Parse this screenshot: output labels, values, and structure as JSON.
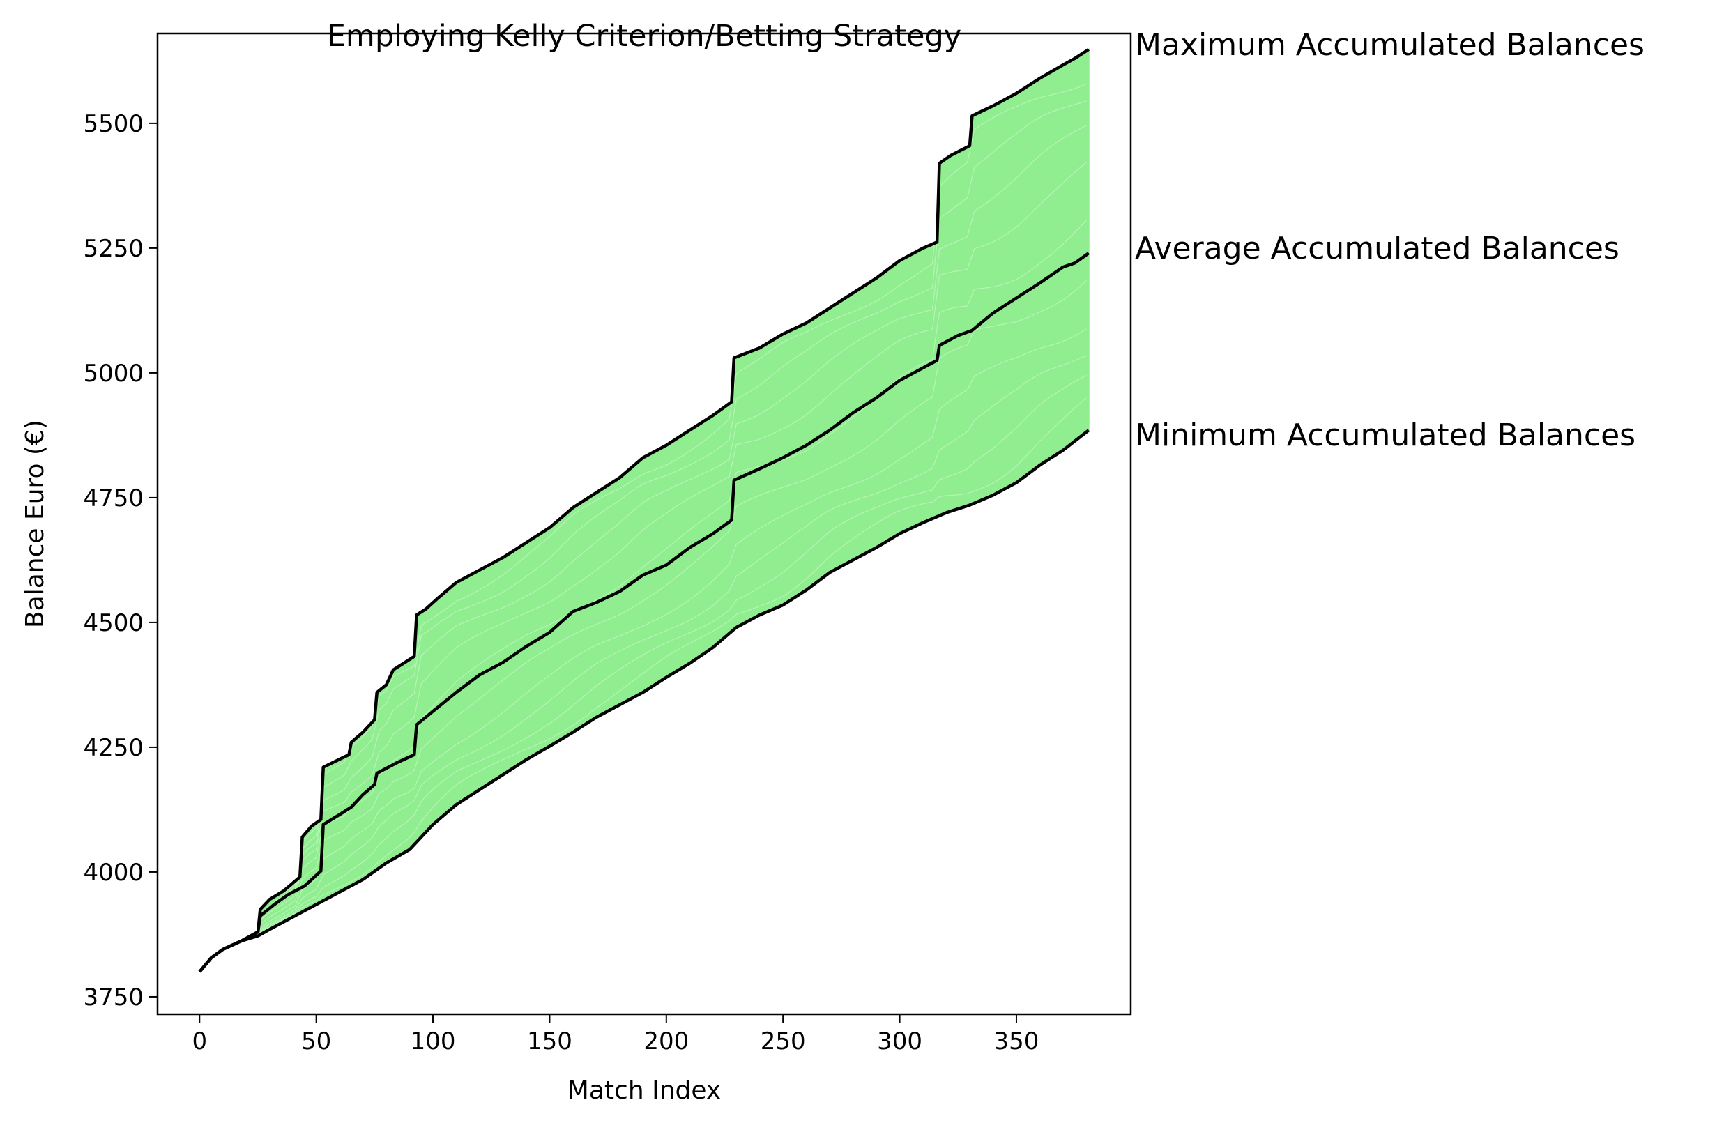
{
  "chart_data": {
    "type": "line",
    "title": "Employing Kelly Criterion/Betting Strategy",
    "xlabel": "Match Index",
    "ylabel": "Balance Euro (€)",
    "xlim": [
      -18,
      399
    ],
    "ylim": [
      3715,
      5680
    ],
    "xticks": [
      0,
      50,
      100,
      150,
      200,
      250,
      300,
      350
    ],
    "yticks": [
      3750,
      4000,
      4250,
      4500,
      4750,
      5000,
      5250,
      5500
    ],
    "grid": false,
    "colors": {
      "band": "#90ee90",
      "summary": "#000000",
      "frame": "#000000"
    },
    "band": {
      "description_series": "Many simulated Kelly betting balance paths (light green) filling the region between the minimum and maximum accumulated balances",
      "count": "many"
    },
    "series": [
      {
        "name": "Maximum Accumulated Balances",
        "points": [
          [
            0,
            3800
          ],
          [
            5,
            3828
          ],
          [
            10,
            3845
          ],
          [
            18,
            3862
          ],
          [
            25,
            3880
          ],
          [
            26,
            3925
          ],
          [
            30,
            3945
          ],
          [
            36,
            3962
          ],
          [
            43,
            3990
          ],
          [
            44,
            4070
          ],
          [
            48,
            4092
          ],
          [
            52,
            4105
          ],
          [
            53,
            4210
          ],
          [
            60,
            4226
          ],
          [
            64,
            4235
          ],
          [
            65,
            4260
          ],
          [
            70,
            4280
          ],
          [
            75,
            4305
          ],
          [
            76,
            4360
          ],
          [
            80,
            4375
          ],
          [
            83,
            4405
          ],
          [
            88,
            4420
          ],
          [
            92,
            4432
          ],
          [
            93,
            4515
          ],
          [
            97,
            4527
          ],
          [
            102,
            4548
          ],
          [
            110,
            4580
          ],
          [
            120,
            4605
          ],
          [
            130,
            4630
          ],
          [
            140,
            4660
          ],
          [
            150,
            4690
          ],
          [
            160,
            4730
          ],
          [
            170,
            4760
          ],
          [
            180,
            4790
          ],
          [
            190,
            4830
          ],
          [
            200,
            4855
          ],
          [
            210,
            4885
          ],
          [
            220,
            4915
          ],
          [
            228,
            4942
          ],
          [
            229,
            5030
          ],
          [
            240,
            5050
          ],
          [
            250,
            5078
          ],
          [
            260,
            5100
          ],
          [
            270,
            5130
          ],
          [
            280,
            5160
          ],
          [
            290,
            5190
          ],
          [
            300,
            5225
          ],
          [
            310,
            5250
          ],
          [
            316,
            5262
          ],
          [
            317,
            5420
          ],
          [
            322,
            5436
          ],
          [
            330,
            5455
          ],
          [
            331,
            5515
          ],
          [
            340,
            5535
          ],
          [
            350,
            5560
          ],
          [
            360,
            5590
          ],
          [
            370,
            5617
          ],
          [
            375,
            5630
          ],
          [
            381,
            5648
          ]
        ]
      },
      {
        "name": "Average Accumulated Balances",
        "points": [
          [
            0,
            3800
          ],
          [
            5,
            3828
          ],
          [
            10,
            3845
          ],
          [
            18,
            3862
          ],
          [
            25,
            3880
          ],
          [
            26,
            3912
          ],
          [
            32,
            3935
          ],
          [
            38,
            3955
          ],
          [
            45,
            3972
          ],
          [
            52,
            4002
          ],
          [
            53,
            4095
          ],
          [
            60,
            4115
          ],
          [
            65,
            4130
          ],
          [
            70,
            4155
          ],
          [
            75,
            4175
          ],
          [
            76,
            4198
          ],
          [
            85,
            4220
          ],
          [
            92,
            4235
          ],
          [
            93,
            4295
          ],
          [
            100,
            4322
          ],
          [
            110,
            4360
          ],
          [
            120,
            4395
          ],
          [
            130,
            4420
          ],
          [
            140,
            4452
          ],
          [
            150,
            4480
          ],
          [
            160,
            4522
          ],
          [
            170,
            4540
          ],
          [
            180,
            4562
          ],
          [
            190,
            4595
          ],
          [
            200,
            4615
          ],
          [
            210,
            4650
          ],
          [
            220,
            4678
          ],
          [
            228,
            4705
          ],
          [
            229,
            4785
          ],
          [
            240,
            4808
          ],
          [
            250,
            4830
          ],
          [
            260,
            4855
          ],
          [
            270,
            4885
          ],
          [
            280,
            4920
          ],
          [
            290,
            4950
          ],
          [
            300,
            4985
          ],
          [
            310,
            5010
          ],
          [
            316,
            5025
          ],
          [
            317,
            5055
          ],
          [
            325,
            5075
          ],
          [
            331,
            5085
          ],
          [
            340,
            5120
          ],
          [
            350,
            5150
          ],
          [
            360,
            5180
          ],
          [
            370,
            5212
          ],
          [
            375,
            5220
          ],
          [
            381,
            5240
          ]
        ]
      },
      {
        "name": "Minimum Accumulated Balances",
        "points": [
          [
            0,
            3800
          ],
          [
            5,
            3828
          ],
          [
            10,
            3845
          ],
          [
            18,
            3862
          ],
          [
            25,
            3872
          ],
          [
            30,
            3885
          ],
          [
            40,
            3910
          ],
          [
            50,
            3935
          ],
          [
            60,
            3960
          ],
          [
            70,
            3985
          ],
          [
            80,
            4018
          ],
          [
            90,
            4045
          ],
          [
            100,
            4095
          ],
          [
            110,
            4135
          ],
          [
            120,
            4165
          ],
          [
            130,
            4195
          ],
          [
            140,
            4225
          ],
          [
            150,
            4252
          ],
          [
            160,
            4280
          ],
          [
            170,
            4310
          ],
          [
            180,
            4335
          ],
          [
            190,
            4360
          ],
          [
            200,
            4390
          ],
          [
            210,
            4418
          ],
          [
            220,
            4450
          ],
          [
            230,
            4490
          ],
          [
            240,
            4515
          ],
          [
            250,
            4535
          ],
          [
            260,
            4565
          ],
          [
            270,
            4600
          ],
          [
            280,
            4625
          ],
          [
            290,
            4650
          ],
          [
            300,
            4678
          ],
          [
            310,
            4700
          ],
          [
            320,
            4720
          ],
          [
            330,
            4735
          ],
          [
            340,
            4755
          ],
          [
            350,
            4780
          ],
          [
            360,
            4815
          ],
          [
            370,
            4845
          ],
          [
            381,
            4885
          ]
        ]
      }
    ],
    "annotations": [
      {
        "text": "Maximum Accumulated Balances",
        "anchor_series": 0
      },
      {
        "text": "Average Accumulated Balances",
        "anchor_series": 1
      },
      {
        "text": "Minimum Accumulated Balances",
        "anchor_series": 2
      }
    ]
  }
}
